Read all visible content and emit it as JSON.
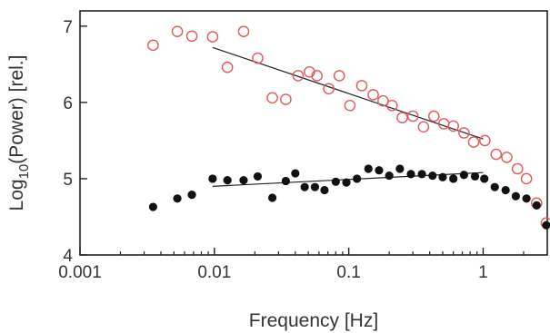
{
  "chart_data": {
    "type": "scatter",
    "xlabel": "Frequency [Hz]",
    "ylabel_main": "Log",
    "ylabel_sub": "10",
    "ylabel_rest": "(Power) [rel.]",
    "xscale": "log",
    "xlim": [
      0.001,
      3
    ],
    "ylim": [
      4,
      7.2
    ],
    "grid": false,
    "x_ticks": [
      {
        "value": 0.001,
        "label": "0.001"
      },
      {
        "value": 0.01,
        "label": "0.01"
      },
      {
        "value": 0.1,
        "label": "0.1"
      },
      {
        "value": 1,
        "label": "1"
      }
    ],
    "y_ticks": [
      {
        "value": 4,
        "label": "4"
      },
      {
        "value": 5,
        "label": "5"
      },
      {
        "value": 6,
        "label": "6"
      },
      {
        "value": 7,
        "label": "7"
      }
    ],
    "series": [
      {
        "marker": "open-circle",
        "color": "#e05a5a",
        "points": [
          [
            0.0035,
            6.75
          ],
          [
            0.0053,
            6.93
          ],
          [
            0.0068,
            6.87
          ],
          [
            0.0097,
            6.86
          ],
          [
            0.0125,
            6.46
          ],
          [
            0.0165,
            6.93
          ],
          [
            0.021,
            6.58
          ],
          [
            0.027,
            6.06
          ],
          [
            0.034,
            6.04
          ],
          [
            0.042,
            6.35
          ],
          [
            0.051,
            6.4
          ],
          [
            0.058,
            6.35
          ],
          [
            0.071,
            6.18
          ],
          [
            0.085,
            6.35
          ],
          [
            0.102,
            5.96
          ],
          [
            0.125,
            6.22
          ],
          [
            0.152,
            6.1
          ],
          [
            0.18,
            6.02
          ],
          [
            0.21,
            5.96
          ],
          [
            0.25,
            5.8
          ],
          [
            0.3,
            5.82
          ],
          [
            0.36,
            5.68
          ],
          [
            0.43,
            5.82
          ],
          [
            0.51,
            5.72
          ],
          [
            0.6,
            5.69
          ],
          [
            0.72,
            5.6
          ],
          [
            0.85,
            5.48
          ],
          [
            1.03,
            5.5
          ],
          [
            1.25,
            5.32
          ],
          [
            1.5,
            5.28
          ],
          [
            1.8,
            5.13
          ],
          [
            2.1,
            5.0
          ],
          [
            2.5,
            4.68
          ],
          [
            2.95,
            4.42
          ]
        ],
        "fit": [
          [
            0.0097,
            6.72
          ],
          [
            1.0,
            5.52
          ]
        ]
      },
      {
        "marker": "filled-circle",
        "color": "#111111",
        "points": [
          [
            0.0035,
            4.63
          ],
          [
            0.0053,
            4.74
          ],
          [
            0.0068,
            4.79
          ],
          [
            0.0097,
            5.0
          ],
          [
            0.0125,
            4.98
          ],
          [
            0.0165,
            4.98
          ],
          [
            0.021,
            5.03
          ],
          [
            0.027,
            4.75
          ],
          [
            0.034,
            4.97
          ],
          [
            0.04,
            5.07
          ],
          [
            0.047,
            4.89
          ],
          [
            0.056,
            4.89
          ],
          [
            0.066,
            4.85
          ],
          [
            0.08,
            4.96
          ],
          [
            0.096,
            4.95
          ],
          [
            0.115,
            5.0
          ],
          [
            0.14,
            5.13
          ],
          [
            0.168,
            5.11
          ],
          [
            0.2,
            5.04
          ],
          [
            0.24,
            5.13
          ],
          [
            0.29,
            5.06
          ],
          [
            0.35,
            5.06
          ],
          [
            0.42,
            5.04
          ],
          [
            0.5,
            5.02
          ],
          [
            0.6,
            5.0
          ],
          [
            0.72,
            5.05
          ],
          [
            0.87,
            5.03
          ],
          [
            1.02,
            5.0
          ],
          [
            1.22,
            4.89
          ],
          [
            1.47,
            4.85
          ],
          [
            1.75,
            4.77
          ],
          [
            2.1,
            4.74
          ],
          [
            2.5,
            4.65
          ],
          [
            2.95,
            4.39
          ]
        ],
        "fit": [
          [
            0.0097,
            4.9
          ],
          [
            1.0,
            5.08
          ]
        ]
      }
    ]
  }
}
